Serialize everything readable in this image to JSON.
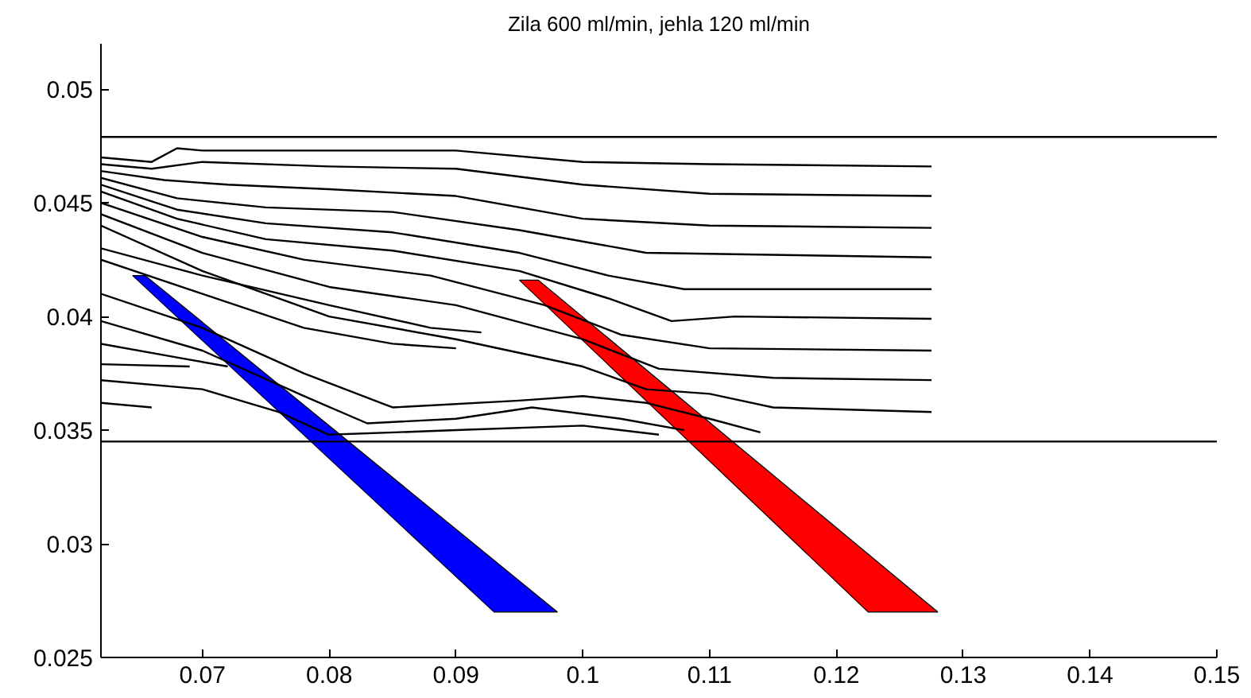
{
  "chart_data": {
    "type": "line",
    "title": "Zila 600 ml/min, jehla 120 ml/min",
    "xlim": [
      0.062,
      0.15
    ],
    "ylim": [
      0.025,
      0.052
    ],
    "xticks": [
      0.07,
      0.08,
      0.09,
      0.1,
      0.11,
      0.12,
      0.13,
      0.14,
      0.15
    ],
    "yticks": [
      0.025,
      0.03,
      0.035,
      0.04,
      0.045,
      0.05
    ],
    "series": [
      {
        "color": "#000000",
        "x": [
          0.062,
          0.15
        ],
        "values": [
          0.0479,
          0.0479
        ]
      },
      {
        "color": "#000000",
        "x": [
          0.062,
          0.15
        ],
        "values": [
          0.0345,
          0.0345
        ]
      },
      {
        "color": "#000000",
        "x": [
          0.062,
          0.066,
          0.068,
          0.07,
          0.08,
          0.09,
          0.1,
          0.11,
          0.1275
        ],
        "values": [
          0.047,
          0.0468,
          0.0474,
          0.0473,
          0.0473,
          0.0473,
          0.0468,
          0.0467,
          0.0466
        ]
      },
      {
        "color": "#000000",
        "x": [
          0.062,
          0.066,
          0.07,
          0.08,
          0.09,
          0.1,
          0.11,
          0.1275
        ],
        "values": [
          0.0467,
          0.0465,
          0.0468,
          0.0466,
          0.0465,
          0.0458,
          0.0454,
          0.0453
        ]
      },
      {
        "color": "#000000",
        "x": [
          0.062,
          0.067,
          0.072,
          0.08,
          0.09,
          0.1,
          0.11,
          0.1275
        ],
        "values": [
          0.0464,
          0.046,
          0.0458,
          0.0456,
          0.0453,
          0.0443,
          0.044,
          0.0439
        ]
      },
      {
        "color": "#000000",
        "x": [
          0.062,
          0.068,
          0.075,
          0.085,
          0.095,
          0.105,
          0.1275
        ],
        "values": [
          0.0461,
          0.0452,
          0.0448,
          0.0446,
          0.0438,
          0.0428,
          0.0426
        ]
      },
      {
        "color": "#000000",
        "x": [
          0.062,
          0.068,
          0.075,
          0.085,
          0.095,
          0.102,
          0.108,
          0.1275
        ],
        "values": [
          0.0458,
          0.0447,
          0.0441,
          0.0437,
          0.0428,
          0.0418,
          0.0412,
          0.0412
        ]
      },
      {
        "color": "#000000",
        "x": [
          0.062,
          0.068,
          0.075,
          0.085,
          0.095,
          0.102,
          0.107,
          0.112,
          0.1275
        ],
        "values": [
          0.0455,
          0.0443,
          0.0434,
          0.0429,
          0.042,
          0.0408,
          0.0398,
          0.04,
          0.0399
        ]
      },
      {
        "color": "#000000",
        "x": [
          0.062,
          0.07,
          0.078,
          0.088,
          0.097,
          0.103,
          0.11,
          0.1275
        ],
        "values": [
          0.045,
          0.0435,
          0.0425,
          0.0418,
          0.0405,
          0.0392,
          0.0386,
          0.0385
        ]
      },
      {
        "color": "#000000",
        "x": [
          0.062,
          0.07,
          0.08,
          0.09,
          0.1,
          0.106,
          0.115,
          0.1275
        ],
        "values": [
          0.0445,
          0.0428,
          0.0413,
          0.0405,
          0.039,
          0.0377,
          0.0373,
          0.0372
        ]
      },
      {
        "color": "#000000",
        "x": [
          0.062,
          0.07,
          0.08,
          0.09,
          0.1,
          0.105,
          0.11,
          0.115,
          0.1275
        ],
        "values": [
          0.044,
          0.042,
          0.04,
          0.039,
          0.0378,
          0.0368,
          0.0366,
          0.036,
          0.0358
        ]
      },
      {
        "color": "#000000",
        "x": [
          0.062,
          0.07,
          0.08,
          0.088,
          0.092
        ],
        "values": [
          0.043,
          0.0418,
          0.0405,
          0.0395,
          0.0393
        ]
      },
      {
        "color": "#000000",
        "x": [
          0.062,
          0.07,
          0.078,
          0.085,
          0.09
        ],
        "values": [
          0.0425,
          0.041,
          0.0395,
          0.0388,
          0.0386
        ]
      },
      {
        "color": "#000000",
        "x": [
          0.062,
          0.07,
          0.078,
          0.085,
          0.095,
          0.1,
          0.105,
          0.11,
          0.114
        ],
        "values": [
          0.041,
          0.0395,
          0.0375,
          0.036,
          0.0363,
          0.0365,
          0.0362,
          0.0355,
          0.0349
        ]
      },
      {
        "color": "#000000",
        "x": [
          0.062,
          0.07,
          0.078,
          0.083,
          0.09,
          0.096,
          0.103,
          0.108
        ],
        "values": [
          0.0398,
          0.0385,
          0.0365,
          0.0353,
          0.0355,
          0.036,
          0.0355,
          0.035
        ]
      },
      {
        "color": "#000000",
        "x": [
          0.062,
          0.068,
          0.072
        ],
        "values": [
          0.0388,
          0.0382,
          0.0378
        ]
      },
      {
        "color": "#000000",
        "x": [
          0.062,
          0.069
        ],
        "values": [
          0.0379,
          0.0378
        ]
      },
      {
        "color": "#000000",
        "x": [
          0.062,
          0.07,
          0.076,
          0.08,
          0.09,
          0.1,
          0.106
        ],
        "values": [
          0.0372,
          0.0368,
          0.0358,
          0.0348,
          0.035,
          0.0352,
          0.0348
        ]
      },
      {
        "color": "#000000",
        "x": [
          0.062,
          0.066
        ],
        "values": [
          0.0362,
          0.036
        ]
      },
      {
        "type": "area",
        "color": "#0000ff",
        "x": [
          0.0645,
          0.0655,
          0.098,
          0.093
        ],
        "values": [
          0.0418,
          0.0418,
          0.027,
          0.027
        ]
      },
      {
        "type": "area",
        "color": "#ff0000",
        "x": [
          0.095,
          0.0965,
          0.128,
          0.1225
        ],
        "values": [
          0.0416,
          0.0416,
          0.027,
          0.027
        ]
      }
    ]
  }
}
